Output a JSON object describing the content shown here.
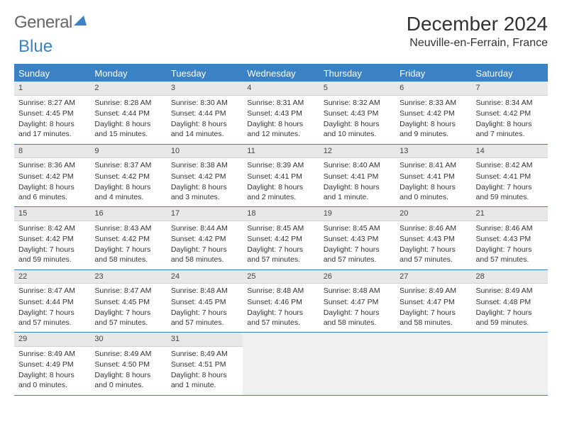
{
  "logo": {
    "text1": "General",
    "text2": "Blue"
  },
  "title": "December 2024",
  "location": "Neuville-en-Ferrain, France",
  "colors": {
    "accent": "#3b82c4",
    "header_bg": "#3b82c4",
    "daynum_bg": "#e8e8e8",
    "empty_bg": "#f0f0f0",
    "text": "#333333"
  },
  "day_names": [
    "Sunday",
    "Monday",
    "Tuesday",
    "Wednesday",
    "Thursday",
    "Friday",
    "Saturday"
  ],
  "weeks": [
    [
      {
        "n": 1,
        "sr": "8:27 AM",
        "ss": "4:45 PM",
        "dl": "8 hours and 17 minutes."
      },
      {
        "n": 2,
        "sr": "8:28 AM",
        "ss": "4:44 PM",
        "dl": "8 hours and 15 minutes."
      },
      {
        "n": 3,
        "sr": "8:30 AM",
        "ss": "4:44 PM",
        "dl": "8 hours and 14 minutes."
      },
      {
        "n": 4,
        "sr": "8:31 AM",
        "ss": "4:43 PM",
        "dl": "8 hours and 12 minutes."
      },
      {
        "n": 5,
        "sr": "8:32 AM",
        "ss": "4:43 PM",
        "dl": "8 hours and 10 minutes."
      },
      {
        "n": 6,
        "sr": "8:33 AM",
        "ss": "4:42 PM",
        "dl": "8 hours and 9 minutes."
      },
      {
        "n": 7,
        "sr": "8:34 AM",
        "ss": "4:42 PM",
        "dl": "8 hours and 7 minutes."
      }
    ],
    [
      {
        "n": 8,
        "sr": "8:36 AM",
        "ss": "4:42 PM",
        "dl": "8 hours and 6 minutes."
      },
      {
        "n": 9,
        "sr": "8:37 AM",
        "ss": "4:42 PM",
        "dl": "8 hours and 4 minutes."
      },
      {
        "n": 10,
        "sr": "8:38 AM",
        "ss": "4:42 PM",
        "dl": "8 hours and 3 minutes."
      },
      {
        "n": 11,
        "sr": "8:39 AM",
        "ss": "4:41 PM",
        "dl": "8 hours and 2 minutes."
      },
      {
        "n": 12,
        "sr": "8:40 AM",
        "ss": "4:41 PM",
        "dl": "8 hours and 1 minute."
      },
      {
        "n": 13,
        "sr": "8:41 AM",
        "ss": "4:41 PM",
        "dl": "8 hours and 0 minutes."
      },
      {
        "n": 14,
        "sr": "8:42 AM",
        "ss": "4:41 PM",
        "dl": "7 hours and 59 minutes."
      }
    ],
    [
      {
        "n": 15,
        "sr": "8:42 AM",
        "ss": "4:42 PM",
        "dl": "7 hours and 59 minutes."
      },
      {
        "n": 16,
        "sr": "8:43 AM",
        "ss": "4:42 PM",
        "dl": "7 hours and 58 minutes."
      },
      {
        "n": 17,
        "sr": "8:44 AM",
        "ss": "4:42 PM",
        "dl": "7 hours and 58 minutes."
      },
      {
        "n": 18,
        "sr": "8:45 AM",
        "ss": "4:42 PM",
        "dl": "7 hours and 57 minutes."
      },
      {
        "n": 19,
        "sr": "8:45 AM",
        "ss": "4:43 PM",
        "dl": "7 hours and 57 minutes."
      },
      {
        "n": 20,
        "sr": "8:46 AM",
        "ss": "4:43 PM",
        "dl": "7 hours and 57 minutes."
      },
      {
        "n": 21,
        "sr": "8:46 AM",
        "ss": "4:43 PM",
        "dl": "7 hours and 57 minutes."
      }
    ],
    [
      {
        "n": 22,
        "sr": "8:47 AM",
        "ss": "4:44 PM",
        "dl": "7 hours and 57 minutes."
      },
      {
        "n": 23,
        "sr": "8:47 AM",
        "ss": "4:45 PM",
        "dl": "7 hours and 57 minutes."
      },
      {
        "n": 24,
        "sr": "8:48 AM",
        "ss": "4:45 PM",
        "dl": "7 hours and 57 minutes."
      },
      {
        "n": 25,
        "sr": "8:48 AM",
        "ss": "4:46 PM",
        "dl": "7 hours and 57 minutes."
      },
      {
        "n": 26,
        "sr": "8:48 AM",
        "ss": "4:47 PM",
        "dl": "7 hours and 58 minutes."
      },
      {
        "n": 27,
        "sr": "8:49 AM",
        "ss": "4:47 PM",
        "dl": "7 hours and 58 minutes."
      },
      {
        "n": 28,
        "sr": "8:49 AM",
        "ss": "4:48 PM",
        "dl": "7 hours and 59 minutes."
      }
    ],
    [
      {
        "n": 29,
        "sr": "8:49 AM",
        "ss": "4:49 PM",
        "dl": "8 hours and 0 minutes."
      },
      {
        "n": 30,
        "sr": "8:49 AM",
        "ss": "4:50 PM",
        "dl": "8 hours and 0 minutes."
      },
      {
        "n": 31,
        "sr": "8:49 AM",
        "ss": "4:51 PM",
        "dl": "8 hours and 1 minute."
      },
      null,
      null,
      null,
      null
    ]
  ],
  "labels": {
    "sunrise": "Sunrise: ",
    "sunset": "Sunset: ",
    "daylight": "Daylight: "
  }
}
